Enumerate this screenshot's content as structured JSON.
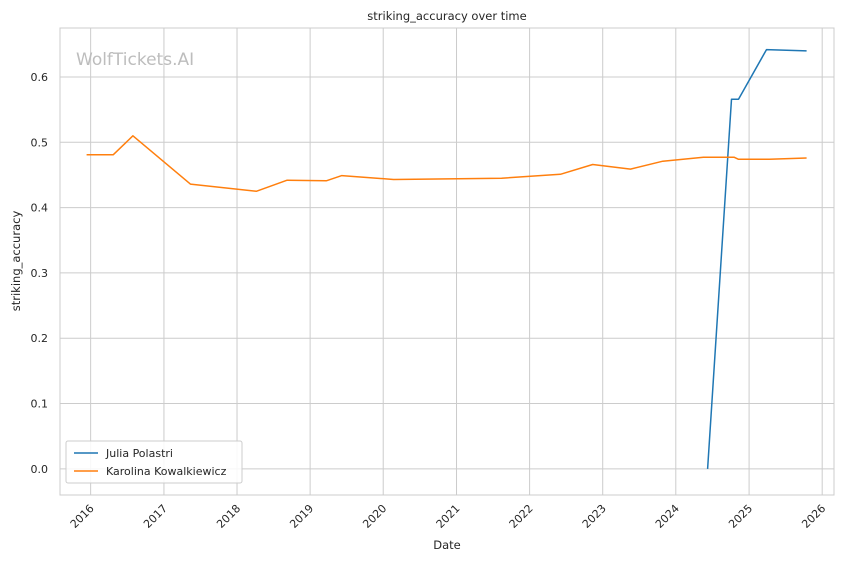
{
  "chart_data": {
    "type": "line",
    "title": "striking_accuracy over time",
    "xlabel": "Date",
    "ylabel": "striking_accuracy",
    "watermark": "WolfTickets.AI",
    "xlim": [
      "2015-08-01",
      "2026-03-01"
    ],
    "ylim": [
      -0.04,
      0.675
    ],
    "x_ticks": [
      "2016",
      "2017",
      "2018",
      "2019",
      "2020",
      "2021",
      "2022",
      "2023",
      "2024",
      "2025",
      "2026"
    ],
    "y_ticks": [
      "0.0",
      "0.1",
      "0.2",
      "0.3",
      "0.4",
      "0.5",
      "0.6"
    ],
    "grid": true,
    "legend_position": "lower-left",
    "series": [
      {
        "name": "Julia Polastri",
        "color": "#1f77b4",
        "points": [
          {
            "x": "2024-06-08",
            "y": 0.0
          },
          {
            "x": "2024-10-05",
            "y": 0.566
          },
          {
            "x": "2024-11-09",
            "y": 0.566
          },
          {
            "x": "2025-03-29",
            "y": 0.642
          },
          {
            "x": "2025-10-15",
            "y": 0.64
          }
        ]
      },
      {
        "name": "Karolina Kowalkiewicz",
        "color": "#ff7f0e",
        "points": [
          {
            "x": "2015-12-12",
            "y": 0.481
          },
          {
            "x": "2016-04-23",
            "y": 0.481
          },
          {
            "x": "2016-07-30",
            "y": 0.51
          },
          {
            "x": "2017-05-13",
            "y": 0.436
          },
          {
            "x": "2018-04-07",
            "y": 0.425
          },
          {
            "x": "2018-09-08",
            "y": 0.442
          },
          {
            "x": "2019-03-23",
            "y": 0.441
          },
          {
            "x": "2019-06-08",
            "y": 0.449
          },
          {
            "x": "2020-02-22",
            "y": 0.443
          },
          {
            "x": "2021-08-14",
            "y": 0.445
          },
          {
            "x": "2022-06-04",
            "y": 0.451
          },
          {
            "x": "2022-11-12",
            "y": 0.466
          },
          {
            "x": "2023-05-20",
            "y": 0.459
          },
          {
            "x": "2023-10-28",
            "y": 0.471
          },
          {
            "x": "2024-05-18",
            "y": 0.477
          },
          {
            "x": "2024-10-19",
            "y": 0.477
          },
          {
            "x": "2024-11-09",
            "y": 0.474
          },
          {
            "x": "2025-04-12",
            "y": 0.474
          },
          {
            "x": "2025-10-15",
            "y": 0.476
          }
        ]
      }
    ]
  }
}
